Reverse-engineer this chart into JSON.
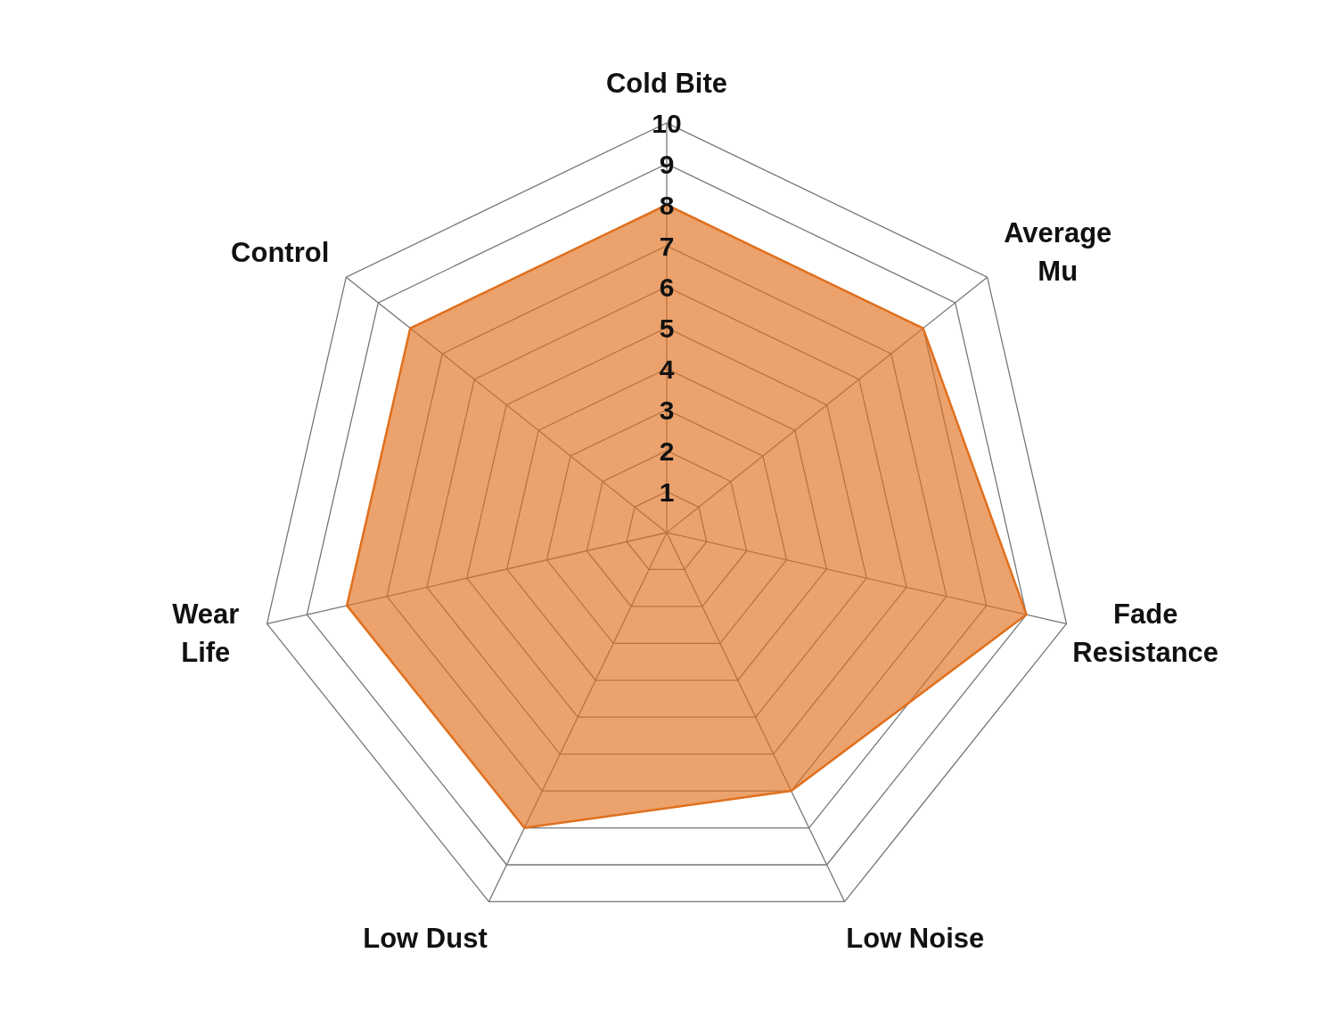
{
  "chart_data": {
    "type": "radar",
    "categories": [
      "Cold Bite",
      "Average\nMu",
      "Fade\nResistance",
      "Low Noise",
      "Low Dust",
      "Wear\nLife",
      "Control"
    ],
    "series": [
      {
        "color": "#e0701e",
        "values": [
          8,
          8,
          9,
          7,
          8,
          8,
          8
        ]
      }
    ],
    "ylim": [
      0,
      10
    ],
    "yticks": [
      1,
      2,
      3,
      4,
      5,
      6,
      7,
      8,
      9,
      10
    ],
    "grid": true
  }
}
